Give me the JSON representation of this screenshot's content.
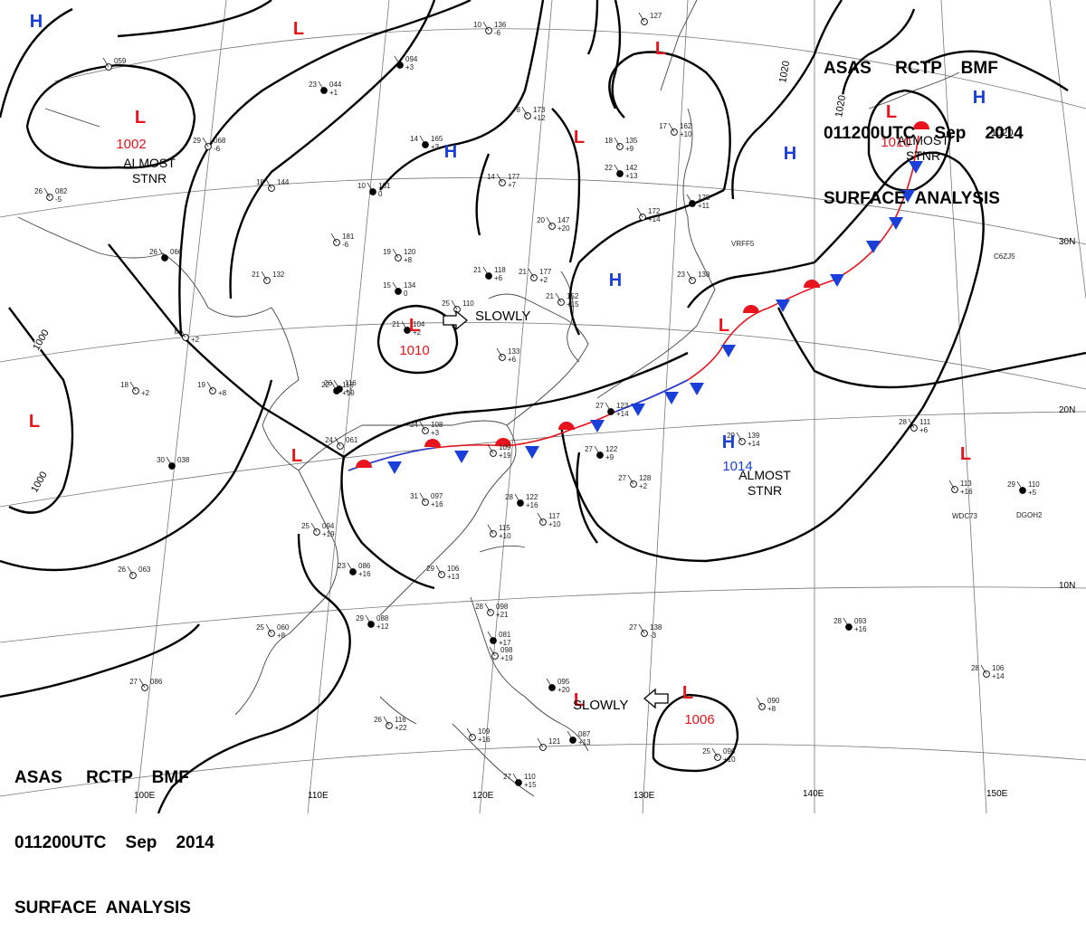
{
  "header": {
    "line1": "ASAS     RCTP    BMF",
    "line2": "011200UTC    Sep    2014",
    "line3": "SURFACE  ANALYSIS"
  },
  "colors": {
    "low": "#e8131c",
    "high": "#1a3fd8",
    "warm_front": "#e8131c",
    "cold_front": "#1a3fd8",
    "isobar": "#000000",
    "grid": "#777777",
    "coast": "#333333"
  },
  "pressure_systems": [
    {
      "type": "H",
      "value": ""
    },
    {
      "type": "L",
      "value": ""
    },
    {
      "type": "L",
      "value": "1002",
      "note": "ALMOST STNR"
    },
    {
      "type": "L",
      "value": ""
    },
    {
      "type": "H",
      "value": ""
    },
    {
      "type": "L",
      "value": ""
    },
    {
      "type": "L",
      "value": ""
    },
    {
      "type": "L",
      "value": "1010",
      "note": "ALMOST STNR"
    },
    {
      "type": "H",
      "value": ""
    },
    {
      "type": "H",
      "value": ""
    },
    {
      "type": "H",
      "value": ""
    },
    {
      "type": "L",
      "value": "1010"
    },
    {
      "type": "L",
      "value": ""
    },
    {
      "type": "L",
      "value": ""
    },
    {
      "type": "L",
      "value": ""
    },
    {
      "type": "H",
      "value": "1014",
      "note": "ALMOST STNR"
    },
    {
      "type": "L",
      "value": ""
    },
    {
      "type": "L",
      "value": ""
    },
    {
      "type": "L",
      "value": "1006"
    }
  ],
  "isobar_labels": [
    "1000",
    "1000",
    "1020",
    "1020",
    "1020"
  ],
  "motion_labels": [
    "SLOWLY",
    "SLOWLY"
  ],
  "lat_labels": [
    "30N",
    "20N",
    "10N"
  ],
  "lon_labels": [
    "100E",
    "110E",
    "120E",
    "130E",
    "140E",
    "150E"
  ],
  "station_obs": [
    {
      "t": "23",
      "p": "044",
      "d": "+1"
    },
    {
      "t": "",
      "p": "059",
      "d": ""
    },
    {
      "t": "29",
      "p": "068",
      "d": "-6"
    },
    {
      "t": "",
      "p": "094",
      "d": "+3"
    },
    {
      "t": "10",
      "p": "136",
      "d": "-6"
    },
    {
      "t": "",
      "p": "127",
      "d": ""
    },
    {
      "t": "14",
      "p": "165",
      "d": "+3"
    },
    {
      "t": "8",
      "p": "173",
      "d": "+12"
    },
    {
      "t": "18",
      "p": "135",
      "d": "+9"
    },
    {
      "t": "22",
      "p": "142",
      "d": "+13"
    },
    {
      "t": "17",
      "p": "162",
      "d": "+10"
    },
    {
      "t": "",
      "p": "172",
      "d": "+14"
    },
    {
      "t": "",
      "p": "178",
      "d": "+11"
    },
    {
      "t": "26",
      "p": "082",
      "d": "-5"
    },
    {
      "t": "18",
      "p": "144",
      "d": ""
    },
    {
      "t": "10",
      "p": "161",
      "d": "0"
    },
    {
      "t": "14",
      "p": "177",
      "d": "+7"
    },
    {
      "t": "20",
      "p": "147",
      "d": "+20"
    },
    {
      "t": "26",
      "p": "066",
      "d": ""
    },
    {
      "t": "",
      "p": "181",
      "d": "-6"
    },
    {
      "t": "19",
      "p": "120",
      "d": "+8"
    },
    {
      "t": "21",
      "p": "118",
      "d": "+6"
    },
    {
      "t": "21",
      "p": "177",
      "d": "+2"
    },
    {
      "t": "21",
      "p": "132",
      "d": ""
    },
    {
      "t": "15",
      "p": "134",
      "d": "0"
    },
    {
      "t": "25",
      "p": "110",
      "d": ""
    },
    {
      "t": "21",
      "p": "152",
      "d": "+15"
    },
    {
      "t": "21",
      "p": "104",
      "d": "+2"
    },
    {
      "t": "",
      "p": "133",
      "d": "+6"
    },
    {
      "t": "23",
      "p": "138",
      "d": ""
    },
    {
      "t": "26",
      "p": "116",
      "d": "+1"
    },
    {
      "t": "8",
      "p": "",
      "d": "+2"
    },
    {
      "t": "19",
      "p": "",
      "d": "+8"
    },
    {
      "t": "22",
      "p": "116",
      "d": "+10"
    },
    {
      "t": "18",
      "p": "",
      "d": "+2"
    },
    {
      "t": "24",
      "p": "108",
      "d": "+3"
    },
    {
      "t": "27",
      "p": "123",
      "d": "+14"
    },
    {
      "t": "29",
      "p": "139",
      "d": "+14"
    },
    {
      "t": "28",
      "p": "111",
      "d": "+6"
    },
    {
      "t": "30",
      "p": "038",
      "d": ""
    },
    {
      "t": "24",
      "p": "061",
      "d": ""
    },
    {
      "t": "",
      "p": "109",
      "d": "+19"
    },
    {
      "t": "27",
      "p": "122",
      "d": "+9"
    },
    {
      "t": "27",
      "p": "128",
      "d": "+2"
    },
    {
      "t": "31",
      "p": "097",
      "d": "+16"
    },
    {
      "t": "28",
      "p": "122",
      "d": "+16"
    },
    {
      "t": "",
      "p": "117",
      "d": "+10"
    },
    {
      "t": "",
      "p": "113",
      "d": "+16"
    },
    {
      "t": "29",
      "p": "110",
      "d": "+5"
    },
    {
      "t": "25",
      "p": "094",
      "d": "+19"
    },
    {
      "t": "",
      "p": "115",
      "d": "+10"
    },
    {
      "t": "23",
      "p": "086",
      "d": "+16"
    },
    {
      "t": "29",
      "p": "106",
      "d": "+13"
    },
    {
      "t": "26",
      "p": "063",
      "d": ""
    },
    {
      "t": "29",
      "p": "088",
      "d": "+12"
    },
    {
      "t": "25",
      "p": "060",
      "d": "+8"
    },
    {
      "t": "28",
      "p": "098",
      "d": "+21"
    },
    {
      "t": "",
      "p": "081",
      "d": "+17"
    },
    {
      "t": "",
      "p": "098",
      "d": "+19"
    },
    {
      "t": "27",
      "p": "138",
      "d": "-3"
    },
    {
      "t": "28",
      "p": "093",
      "d": "+16"
    },
    {
      "t": "28",
      "p": "106",
      "d": "+14"
    },
    {
      "t": "27",
      "p": "086",
      "d": ""
    },
    {
      "t": "",
      "p": "095",
      "d": "+20"
    },
    {
      "t": "26",
      "p": "116",
      "d": "+22"
    },
    {
      "t": "",
      "p": "109",
      "d": "+16"
    },
    {
      "t": "",
      "p": "087",
      "d": "+13"
    },
    {
      "t": "",
      "p": "090",
      "d": "+8"
    },
    {
      "t": "25",
      "p": "096",
      "d": "+10"
    },
    {
      "t": "27",
      "p": "110",
      "d": "+15"
    },
    {
      "t": "",
      "p": "121",
      "d": ""
    }
  ],
  "ship_ids": [
    "VRFF5",
    "C6ZJ5",
    "WDC73",
    "DGOH2"
  ]
}
